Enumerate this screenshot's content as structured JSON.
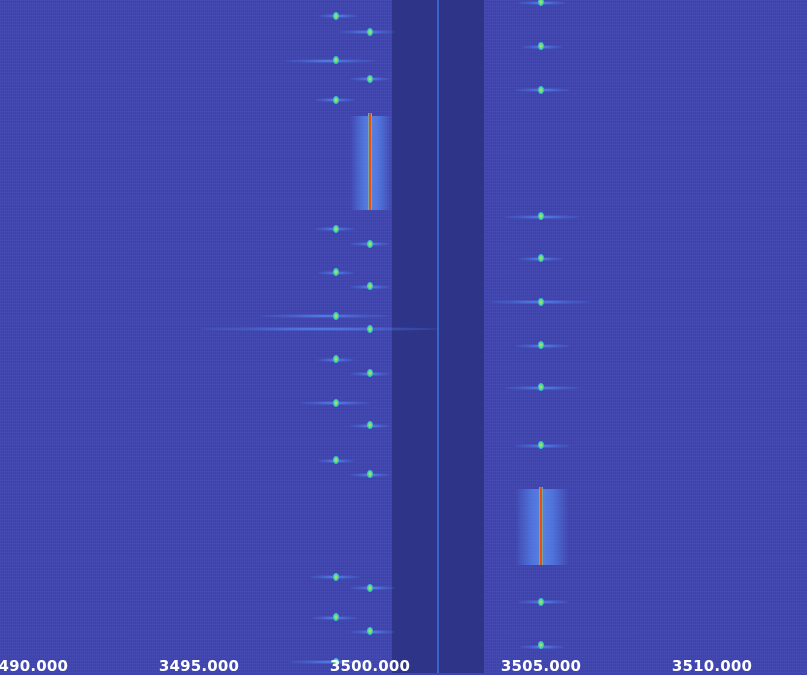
{
  "waterfall": {
    "colors": {
      "background": "#3f45b0",
      "filter_band": "#2e3488",
      "carrier_line": "#3b63c9",
      "signal_low": "#2ea8ff",
      "signal_mid": "#4ee08a",
      "signal_high": "#ffd23a",
      "signal_peak": "#d40000"
    },
    "frequency_axis": {
      "ticks": [
        "3490.000",
        "3495.000",
        "3500.000",
        "3505.000",
        "3510.000"
      ]
    }
  }
}
